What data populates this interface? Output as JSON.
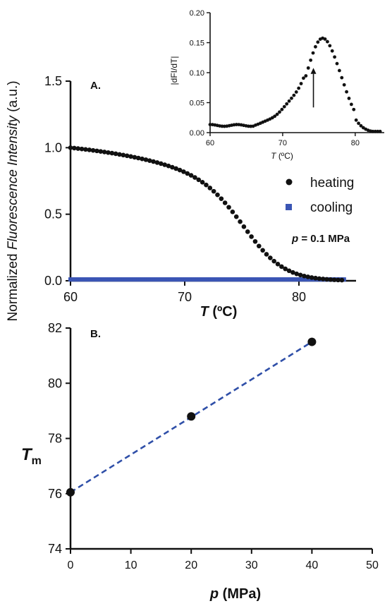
{
  "chart_data": [
    {
      "panel_label": "A.",
      "type": "scatter",
      "xlabel_var": "T",
      "xlabel_unit": "(ºC)",
      "ylabel_pre": "Normalized ",
      "ylabel_italic": "Fluorescence Intensity",
      "ylabel_post": " (a.u.)",
      "xlim": [
        60,
        85
      ],
      "ylim": [
        0,
        1.5
      ],
      "xticks": [
        60,
        70,
        80
      ],
      "yticks": [
        "0.0",
        "0.5",
        "1.0",
        "1.5"
      ],
      "annotation_var": "p",
      "annotation_rest": " = 0.1 MPa",
      "series": [
        {
          "name": "heating",
          "color": "#111111",
          "marker": "circle",
          "model": "sigmoid",
          "x_range": [
            60,
            84
          ],
          "step": 0.33,
          "midpoint": 75.6,
          "width": 1.8,
          "baseline_slope": -0.0088
        },
        {
          "name": "cooling",
          "color": "#3a55b4",
          "marker": "square",
          "model": "flat",
          "x_range": [
            60,
            84
          ],
          "value": 0.01
        }
      ],
      "inset": {
        "type": "scatter",
        "ylabel": "|dFI/dT|",
        "xlabel_var": "T",
        "xlabel_unit": "(ºC)",
        "xlim": [
          60,
          84
        ],
        "ylim": [
          0,
          0.2
        ],
        "xticks": [
          60,
          70,
          80
        ],
        "yticks": [
          "0.00",
          "0.05",
          "0.10",
          "0.15",
          "0.20"
        ],
        "arrow_at_x": 75.6,
        "peak_x": 75.6,
        "peak_y": 0.145
      }
    },
    {
      "panel_label": "B.",
      "type": "scatter",
      "xlabel_var": "p",
      "xlabel_unit": "(MPa)",
      "ylabel_var": "T",
      "ylabel_sub": "m",
      "xlim": [
        0,
        50
      ],
      "ylim": [
        74,
        82
      ],
      "xticks": [
        0,
        10,
        20,
        30,
        40,
        50
      ],
      "yticks": [
        74,
        76,
        78,
        80,
        82
      ],
      "points": [
        {
          "x": 0,
          "y": 76.05
        },
        {
          "x": 20,
          "y": 78.8
        },
        {
          "x": 40,
          "y": 81.5
        }
      ],
      "fit_line": {
        "x": [
          0,
          40
        ],
        "y": [
          76.05,
          81.5
        ],
        "color": "#2f4fa8",
        "style": "dashed"
      }
    }
  ]
}
